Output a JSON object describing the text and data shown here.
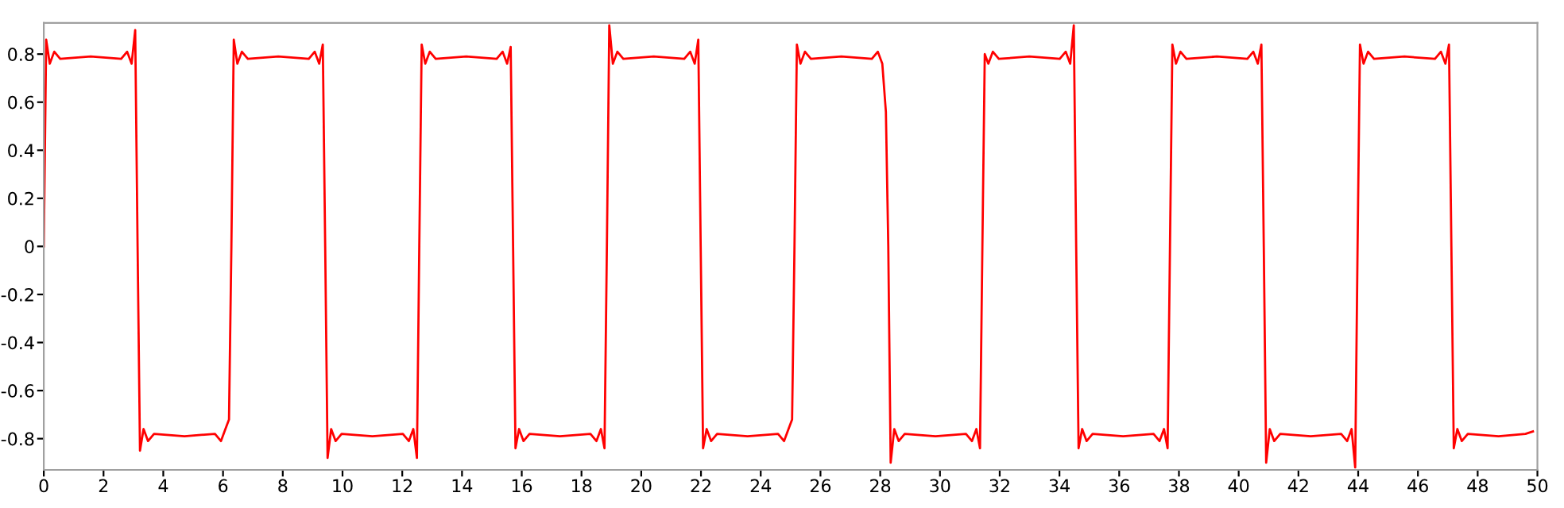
{
  "chart_data": {
    "type": "line",
    "x": [
      0,
      0.08,
      0.2,
      0.35,
      0.55,
      1.57,
      2.59,
      2.79,
      2.94,
      3.06,
      3.14,
      3.22,
      3.34,
      3.49,
      3.69,
      4.71,
      5.73,
      5.93,
      6.08,
      6.2,
      6.28,
      6.36,
      6.48,
      6.63,
      6.83,
      7.85,
      8.87,
      9.07,
      9.22,
      9.34,
      9.42,
      9.5,
      9.62,
      9.77,
      9.97,
      11.0,
      12.02,
      12.22,
      12.37,
      12.49,
      12.57,
      12.65,
      12.77,
      12.92,
      13.12,
      14.14,
      15.16,
      15.36,
      15.51,
      15.63,
      15.71,
      15.79,
      15.91,
      16.06,
      16.26,
      17.28,
      18.3,
      18.5,
      18.65,
      18.77,
      18.85,
      18.93,
      19.05,
      19.2,
      19.4,
      20.42,
      21.44,
      21.64,
      21.79,
      21.91,
      21.99,
      22.07,
      22.19,
      22.34,
      22.54,
      23.56,
      24.58,
      24.78,
      24.93,
      25.05,
      25.13,
      25.21,
      25.33,
      25.48,
      25.68,
      26.7,
      27.72,
      27.92,
      28.07,
      28.19,
      28.27,
      28.35,
      28.47,
      28.62,
      28.82,
      29.85,
      30.87,
      31.07,
      31.22,
      31.34,
      31.42,
      31.5,
      31.62,
      31.77,
      31.97,
      32.99,
      34.01,
      34.21,
      34.36,
      34.48,
      34.56,
      34.64,
      34.76,
      34.91,
      35.11,
      36.13,
      37.15,
      37.35,
      37.5,
      37.62,
      37.7,
      37.78,
      37.9,
      38.05,
      38.25,
      39.27,
      40.29,
      40.49,
      40.64,
      40.76,
      40.84,
      40.92,
      41.04,
      41.19,
      41.39,
      42.41,
      43.43,
      43.63,
      43.78,
      43.9,
      43.98,
      44.06,
      44.18,
      44.33,
      44.53,
      45.55,
      46.57,
      46.77,
      46.92,
      47.04,
      47.12,
      47.2,
      47.32,
      47.47,
      47.67,
      48.7,
      49.6,
      49.85
    ],
    "series": [
      {
        "color": "#ff0000",
        "values": [
          0,
          0.86,
          0.76,
          0.81,
          0.78,
          0.79,
          0.78,
          0.81,
          0.76,
          0.9,
          0,
          -0.85,
          -0.76,
          -0.81,
          -0.78,
          -0.79,
          -0.78,
          -0.81,
          -0.76,
          -0.72,
          0,
          0.86,
          0.76,
          0.81,
          0.78,
          0.79,
          0.78,
          0.81,
          0.76,
          0.84,
          0,
          -0.88,
          -0.76,
          -0.81,
          -0.78,
          -0.79,
          -0.78,
          -0.81,
          -0.76,
          -0.88,
          0,
          0.84,
          0.76,
          0.81,
          0.78,
          0.79,
          0.78,
          0.81,
          0.76,
          0.83,
          0,
          -0.84,
          -0.76,
          -0.81,
          -0.78,
          -0.79,
          -0.78,
          -0.81,
          -0.76,
          -0.84,
          0,
          0.92,
          0.76,
          0.81,
          0.78,
          0.79,
          0.78,
          0.81,
          0.76,
          0.86,
          0,
          -0.84,
          -0.76,
          -0.81,
          -0.78,
          -0.79,
          -0.78,
          -0.81,
          -0.76,
          -0.72,
          0,
          0.84,
          0.76,
          0.81,
          0.78,
          0.79,
          0.78,
          0.81,
          0.76,
          0.56,
          0,
          -0.9,
          -0.76,
          -0.81,
          -0.78,
          -0.79,
          -0.78,
          -0.81,
          -0.76,
          -0.84,
          0,
          0.8,
          0.76,
          0.81,
          0.78,
          0.79,
          0.78,
          0.81,
          0.76,
          0.92,
          0,
          -0.84,
          -0.76,
          -0.81,
          -0.78,
          -0.79,
          -0.78,
          -0.81,
          -0.76,
          -0.84,
          0,
          0.84,
          0.76,
          0.81,
          0.78,
          0.79,
          0.78,
          0.81,
          0.76,
          0.84,
          0,
          -0.9,
          -0.76,
          -0.81,
          -0.78,
          -0.79,
          -0.78,
          -0.81,
          -0.76,
          -0.92,
          0,
          0.84,
          0.76,
          0.81,
          0.78,
          0.79,
          0.78,
          0.81,
          0.76,
          0.84,
          0,
          -0.84,
          -0.76,
          -0.81,
          -0.78,
          -0.79,
          -0.78,
          -0.77
        ]
      }
    ],
    "xlim": [
      0,
      50
    ],
    "ylim": [
      -0.93,
      0.93
    ],
    "xticks": [
      0,
      2,
      4,
      6,
      8,
      10,
      12,
      14,
      16,
      18,
      20,
      22,
      24,
      26,
      28,
      30,
      32,
      34,
      36,
      38,
      40,
      42,
      44,
      46,
      48,
      50
    ],
    "yticks": [
      -0.8,
      -0.6,
      -0.4,
      -0.2,
      0,
      0.2,
      0.4,
      0.6,
      0.8
    ],
    "marker": "none",
    "line_style": "solid",
    "grid": false
  }
}
